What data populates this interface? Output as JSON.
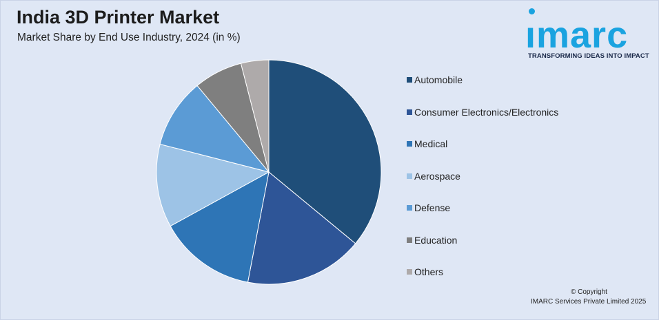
{
  "header": {
    "title": "India 3D Printer Market",
    "subtitle": "Market Share by End Use Industry, 2024 (in %)"
  },
  "logo": {
    "word": "ımarc",
    "tagline": "TRANSFORMING IDEAS INTO IMPACT",
    "color": "#1aa3e0"
  },
  "footer": {
    "copyright": "© Copyright",
    "owner": "IMARC Services Private Limited 2025"
  },
  "chart_data": {
    "type": "pie",
    "title": "India 3D Printer Market",
    "subtitle": "Market Share by End Use Industry, 2024 (in %)",
    "legend_position": "right",
    "start_angle": "12 o'clock, clockwise",
    "categories": [
      "Automobile",
      "Consumer Electronics/Electronics",
      "Medical",
      "Aerospace",
      "Defense",
      "Education",
      "Others"
    ],
    "values": [
      36,
      17,
      14,
      12,
      10,
      7,
      4
    ],
    "colors": [
      "#1f4e79",
      "#2e5597",
      "#2e75b6",
      "#9dc3e6",
      "#5b9bd5",
      "#7f7f7f",
      "#aeaaaa"
    ]
  }
}
